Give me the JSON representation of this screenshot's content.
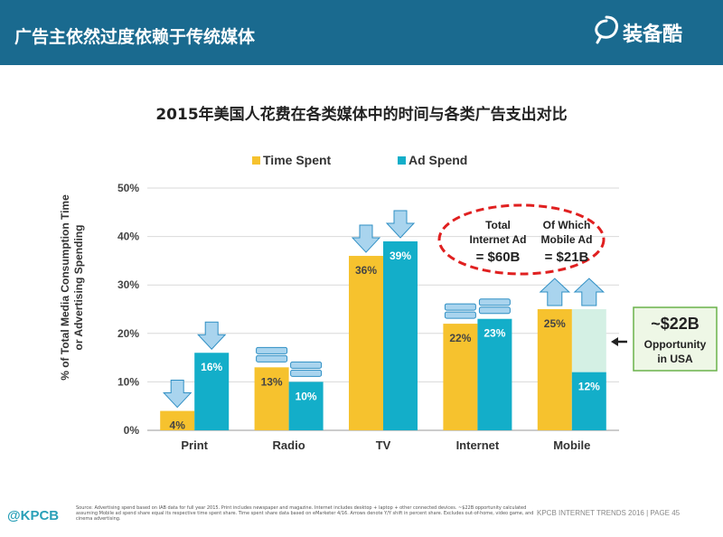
{
  "header": {
    "title": "广告主依然过度依赖于传统媒体",
    "brand": "装备酷",
    "brand_color": "#1a6a8f"
  },
  "chart_data": {
    "type": "bar",
    "title": "2015年美国人花费在各类媒体中的时间与各类广告支出对比",
    "ylabel": "% of Total Media Consumption Time or Advertising Spending",
    "xlabel": "",
    "categories": [
      "Print",
      "Radio",
      "TV",
      "Internet",
      "Mobile"
    ],
    "ylim": [
      0,
      50
    ],
    "yticks": [
      "0%",
      "10%",
      "20%",
      "30%",
      "40%",
      "50%"
    ],
    "grid": true,
    "legend_position": "top",
    "series": [
      {
        "name": "Time Spent",
        "color": "#f6c22e",
        "values": [
          4,
          13,
          36,
          22,
          25
        ],
        "labels": [
          "4%",
          "13%",
          "36%",
          "22%",
          "25%"
        ]
      },
      {
        "name": "Ad Spend",
        "color": "#13aec9",
        "values": [
          16,
          10,
          39,
          23,
          12
        ],
        "labels": [
          "16%",
          "10%",
          "39%",
          "23%",
          "12%"
        ]
      }
    ],
    "arrows": [
      {
        "category": "Print",
        "series": "Time Spent",
        "direction": "down"
      },
      {
        "category": "Print",
        "series": "Ad Spend",
        "direction": "down"
      },
      {
        "category": "Radio",
        "series": "Time Spent",
        "direction": "flat"
      },
      {
        "category": "Radio",
        "series": "Ad Spend",
        "direction": "flat"
      },
      {
        "category": "TV",
        "series": "Time Spent",
        "direction": "down"
      },
      {
        "category": "TV",
        "series": "Ad Spend",
        "direction": "down"
      },
      {
        "category": "Internet",
        "series": "Time Spent",
        "direction": "flat"
      },
      {
        "category": "Internet",
        "series": "Ad Spend",
        "direction": "flat"
      },
      {
        "category": "Mobile",
        "series": "Time Spent",
        "direction": "up"
      },
      {
        "category": "Mobile",
        "series": "Ad Spend",
        "direction": "up"
      }
    ],
    "opportunity": {
      "value": 25,
      "color": "#d4f0e4"
    },
    "annotations": {
      "internet_ad": [
        "Total",
        "Internet Ad",
        "= $60B"
      ],
      "mobile_ad": [
        "Of Which",
        "Mobile Ad",
        "= $21B"
      ],
      "callout": [
        "~$22B",
        "Opportunity",
        "in USA"
      ]
    },
    "colors": {
      "arrow_fill": "#a9d4ee",
      "arrow_stroke": "#2f8fc4",
      "ellipse": "#e02020",
      "callout_border": "#6ab24a",
      "callout_fill": "#eef7e6"
    }
  },
  "footer": {
    "logo": "@KPCB",
    "source": "Source: Advertising spend based on IAB data for full year 2015. Print includes newspaper and magazine. Internet includes desktop + laptop + other connected devices. ~$22B opportunity calculated assuming Mobile ad spend share equal its respective time spent share. Time spent share data based on eMarketer 4/16. Arrows denote Y/Y shift in percent share. Excludes out-of-home, video game, and cinema advertising.",
    "right": "KPCB INTERNET TRENDS 2016  |  PAGE 45"
  }
}
